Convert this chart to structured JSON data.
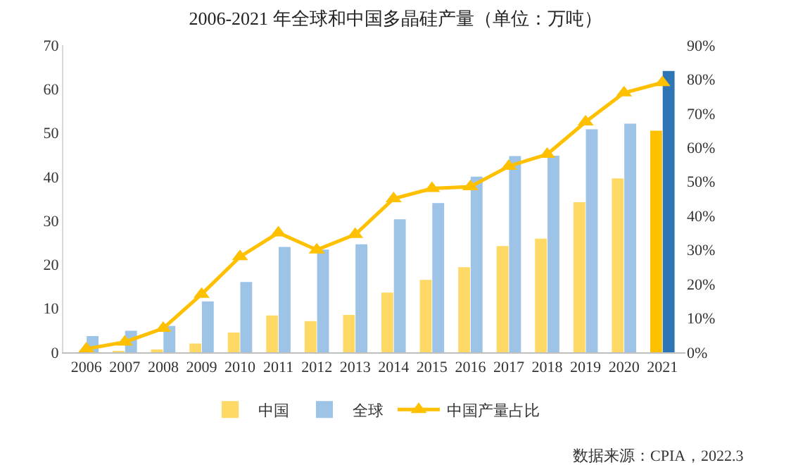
{
  "chart_data": {
    "type": "bar",
    "title": "2006-2021 年全球和中国多晶硅产量（单位：万吨）",
    "categories": [
      "2006",
      "2007",
      "2008",
      "2009",
      "2010",
      "2011",
      "2012",
      "2013",
      "2014",
      "2015",
      "2016",
      "2017",
      "2018",
      "2019",
      "2020",
      "2021"
    ],
    "series": [
      {
        "name": "中国",
        "color": "#ffd966",
        "colors": [
          "#ffd966",
          "#ffd966",
          "#ffd966",
          "#ffd966",
          "#ffd966",
          "#ffd966",
          "#ffd966",
          "#ffd966",
          "#ffd966",
          "#ffd966",
          "#ffd966",
          "#ffd966",
          "#ffd966",
          "#ffd966",
          "#ffd966",
          "#ffc000"
        ],
        "values": [
          null,
          0.1,
          0.4,
          2.0,
          4.5,
          8.4,
          7.1,
          8.5,
          13.6,
          16.5,
          19.4,
          24.2,
          25.9,
          34.2,
          39.6,
          50.5
        ]
      },
      {
        "name": "全球",
        "color": "#9dc3e6",
        "colors": [
          "#9dc3e6",
          "#9dc3e6",
          "#9dc3e6",
          "#9dc3e6",
          "#9dc3e6",
          "#9dc3e6",
          "#9dc3e6",
          "#9dc3e6",
          "#9dc3e6",
          "#9dc3e6",
          "#9dc3e6",
          "#9dc3e6",
          "#9dc3e6",
          "#9dc3e6",
          "#9dc3e6",
          "#2e75b6"
        ],
        "values": [
          3.7,
          4.9,
          6.0,
          11.6,
          16.0,
          24.0,
          23.4,
          24.6,
          30.3,
          34.0,
          40.0,
          44.7,
          44.8,
          50.8,
          52.1,
          64.1
        ]
      },
      {
        "name": "中国产量占比",
        "type": "line",
        "axis": "y2",
        "color": "#ffc000",
        "marker": "triangle",
        "values": [
          1,
          3,
          7,
          17,
          28,
          35,
          30,
          34.5,
          45,
          48,
          48.5,
          54.5,
          58,
          67.5,
          76,
          79
        ]
      }
    ],
    "ylim": [
      0,
      70
    ],
    "yticks": [
      0,
      10,
      20,
      30,
      40,
      50,
      60,
      70
    ],
    "y2lim": [
      0,
      90
    ],
    "y2ticks": [
      {
        "value": 0,
        "label": "0%"
      },
      {
        "value": 10,
        "label": "10%"
      },
      {
        "value": 20,
        "label": "20%"
      },
      {
        "value": 30,
        "label": "30%"
      },
      {
        "value": 40,
        "label": "40%"
      },
      {
        "value": 50,
        "label": "50%"
      },
      {
        "value": 60,
        "label": "60%"
      },
      {
        "value": 70,
        "label": "70%"
      },
      {
        "value": 80,
        "label": "80%"
      },
      {
        "value": 90,
        "label": "90%"
      }
    ],
    "legend": "bottom",
    "annotations": [
      "数据来源：CPIA，2022.3"
    ]
  }
}
